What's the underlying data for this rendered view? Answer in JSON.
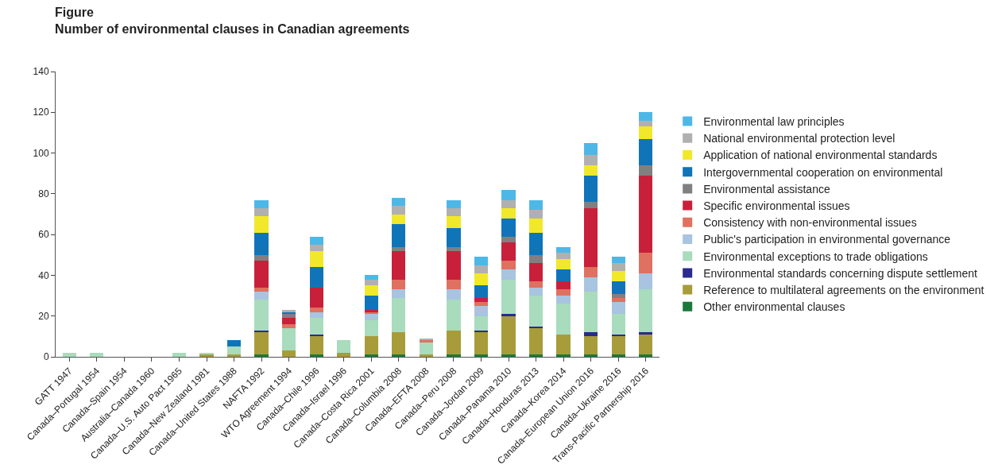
{
  "chart_data": {
    "type": "bar",
    "stacked": true,
    "title": "Figure",
    "subtitle": "Number of environmental clauses in Canadian agreements",
    "categories": [
      "GATT 1947",
      "Canada–Portugal 1954",
      "Canada–Spain 1954",
      "Australia–Canada 1960",
      "Canada–U.S. Auto Pact 1965",
      "Canada–New Zealand 1981",
      "Canada–United States 1988",
      "NAFTA 1992",
      "WTO Agreement 1994",
      "Canada–Chile 1996",
      "Canada–Israel 1996",
      "Canada–Costa Rica 2001",
      "Canada–Columbia 2008",
      "Canada–EFTA 2008",
      "Canada–Peru 2008",
      "Canada–Jordan 2009",
      "Canada–Panama 2010",
      "Canada–Honduras 2013",
      "Canada–Korea 2014",
      "Canada–European Union 2016",
      "Canada–Ukraine 2016",
      "Trans-Pacific Partnership 2016"
    ],
    "series": [
      {
        "name": "Other environmental clauses",
        "color": "#1a7a3a",
        "values": [
          0,
          0,
          0,
          0,
          0,
          0,
          0,
          1,
          0,
          1,
          0,
          1,
          1,
          0,
          1,
          1,
          1,
          1,
          1,
          1,
          1,
          1
        ]
      },
      {
        "name": "Reference to multilateral agreements on the environment",
        "color": "#a89c3a",
        "values": [
          0,
          0,
          0,
          0,
          0,
          1,
          1,
          11,
          3,
          9,
          2,
          9,
          11,
          1,
          12,
          11,
          19,
          13,
          10,
          9,
          9,
          10
        ]
      },
      {
        "name": "Environmental standards concerning dispute settlement",
        "color": "#2a2a90",
        "values": [
          0,
          0,
          0,
          0,
          0,
          0,
          0,
          1,
          0,
          1,
          0,
          0,
          0,
          0,
          0,
          1,
          1,
          1,
          0,
          2,
          1,
          1
        ]
      },
      {
        "name": "Environmental exceptions to trade obligations",
        "color": "#a8dcbc",
        "values": [
          2,
          2,
          0,
          0,
          2,
          1,
          4,
          15,
          11,
          8,
          6,
          8,
          17,
          6,
          15,
          7,
          17,
          15,
          15,
          20,
          10,
          21
        ]
      },
      {
        "name": "Public's participation in environmental governance",
        "color": "#a8c4e0",
        "values": [
          0,
          0,
          0,
          0,
          0,
          0,
          0,
          4,
          0,
          3,
          0,
          3,
          4,
          0,
          5,
          5,
          5,
          4,
          4,
          7,
          6,
          8
        ]
      },
      {
        "name": "Consistency with non-environmental issues",
        "color": "#e07060",
        "values": [
          0,
          0,
          0,
          0,
          0,
          0,
          0,
          2,
          2,
          2,
          0,
          1,
          5,
          1,
          5,
          2,
          4,
          3,
          3,
          5,
          2,
          10
        ]
      },
      {
        "name": "Specific environmental issues",
        "color": "#c8203a",
        "values": [
          0,
          0,
          0,
          0,
          0,
          0,
          0,
          13,
          3,
          10,
          0,
          1,
          14,
          0,
          14,
          2,
          9,
          9,
          4,
          29,
          0,
          38
        ]
      },
      {
        "name": "Environmental assistance",
        "color": "#808080",
        "values": [
          0,
          0,
          0,
          0,
          0,
          0,
          0,
          3,
          2,
          0,
          0,
          0,
          2,
          0,
          2,
          0,
          3,
          4,
          0,
          3,
          2,
          5
        ]
      },
      {
        "name": "Intergovernmental cooperation on environmental",
        "color": "#0f75b8",
        "values": [
          0,
          0,
          0,
          0,
          0,
          0,
          3,
          11,
          1,
          10,
          0,
          7,
          11,
          0,
          9,
          6,
          9,
          11,
          6,
          13,
          6,
          13
        ]
      },
      {
        "name": "Application of national environmental standards",
        "color": "#f2e82a",
        "values": [
          0,
          0,
          0,
          0,
          0,
          0,
          0,
          8,
          0,
          8,
          0,
          5,
          5,
          0,
          6,
          6,
          5,
          7,
          5,
          5,
          5,
          6
        ]
      },
      {
        "name": "National environmental protection level",
        "color": "#b0b0b0",
        "values": [
          0,
          0,
          0,
          0,
          0,
          0,
          0,
          4,
          1,
          3,
          0,
          3,
          4,
          1,
          4,
          4,
          4,
          4,
          3,
          5,
          4,
          3
        ]
      },
      {
        "name": "Environmental law principles",
        "color": "#4db8e8",
        "values": [
          0,
          0,
          0,
          0,
          0,
          0,
          0,
          4,
          0,
          4,
          0,
          2,
          4,
          0,
          4,
          4,
          5,
          5,
          3,
          6,
          3,
          4
        ]
      }
    ],
    "ylim": [
      0,
      140
    ],
    "yticks": [
      0,
      20,
      40,
      60,
      80,
      100,
      120,
      140
    ],
    "legend": "right"
  }
}
